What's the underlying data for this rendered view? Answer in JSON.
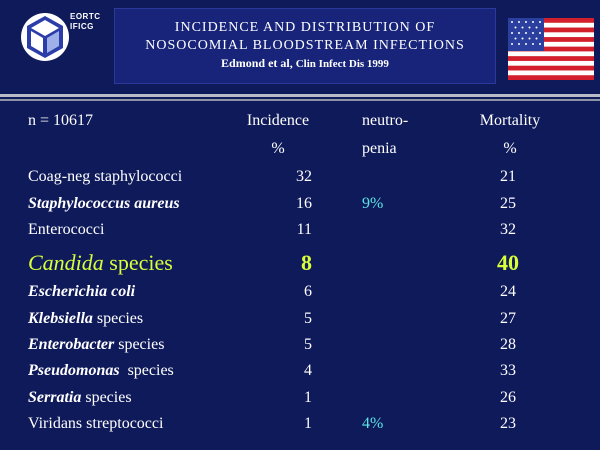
{
  "header": {
    "logo_text_line1": "EORTC",
    "logo_text_line2": "IFICG",
    "title_line1": "INCIDENCE AND DISTRIBUTION OF",
    "title_line2": "NOSOCOMIAL BLOODSTREAM INFECTIONS",
    "citation_authors": "Edmond et al,",
    "citation_source": "Clin Infect Dis 1999",
    "flag_icon": "us-flag-icon"
  },
  "table": {
    "n_label": "n = 10617",
    "col_incidence_l1": "Incidence",
    "col_incidence_l2": "%",
    "col_neutropenia_l1": "neutro-",
    "col_neutropenia_l2": "penia",
    "col_mortality_l1": "Mortality",
    "col_mortality_l2": "%",
    "rows": [
      {
        "name_a": "Coag-neg staphylococci",
        "name_b": "",
        "incidence": "32",
        "neutropenia": "",
        "mortality": "21"
      },
      {
        "name_a": "Staphylococcus aureus",
        "name_b": "",
        "incidence": "16",
        "neutropenia": "9%",
        "mortality": "25"
      },
      {
        "name_a": "Enterococci",
        "name_b": "",
        "incidence": "11",
        "neutropenia": "",
        "mortality": "32"
      },
      {
        "name_a": "Candida",
        "name_b": " species",
        "incidence": "8",
        "neutropenia": "",
        "mortality": "40"
      },
      {
        "name_a": "Escherichia coli",
        "name_b": "",
        "incidence": "6",
        "neutropenia": "",
        "mortality": "24"
      },
      {
        "name_a": "Klebsiella",
        "name_b": " species",
        "incidence": "5",
        "neutropenia": "",
        "mortality": "27"
      },
      {
        "name_a": "Enterobacter",
        "name_b": " species",
        "incidence": "5",
        "neutropenia": "",
        "mortality": "28"
      },
      {
        "name_a": "Pseudomonas",
        "name_b": "  species",
        "incidence": "4",
        "neutropenia": "",
        "mortality": "33"
      },
      {
        "name_a": "Serratia",
        "name_b": " species",
        "incidence": "1",
        "neutropenia": "",
        "mortality": "26"
      },
      {
        "name_a": "Viridans streptococci",
        "name_b": "",
        "incidence": "1",
        "neutropenia": "4%",
        "mortality": "23"
      }
    ]
  },
  "colors": {
    "background": "#0f1a5a",
    "highlight": "#d8ff3a",
    "neutropenia": "#5ce5e5"
  }
}
